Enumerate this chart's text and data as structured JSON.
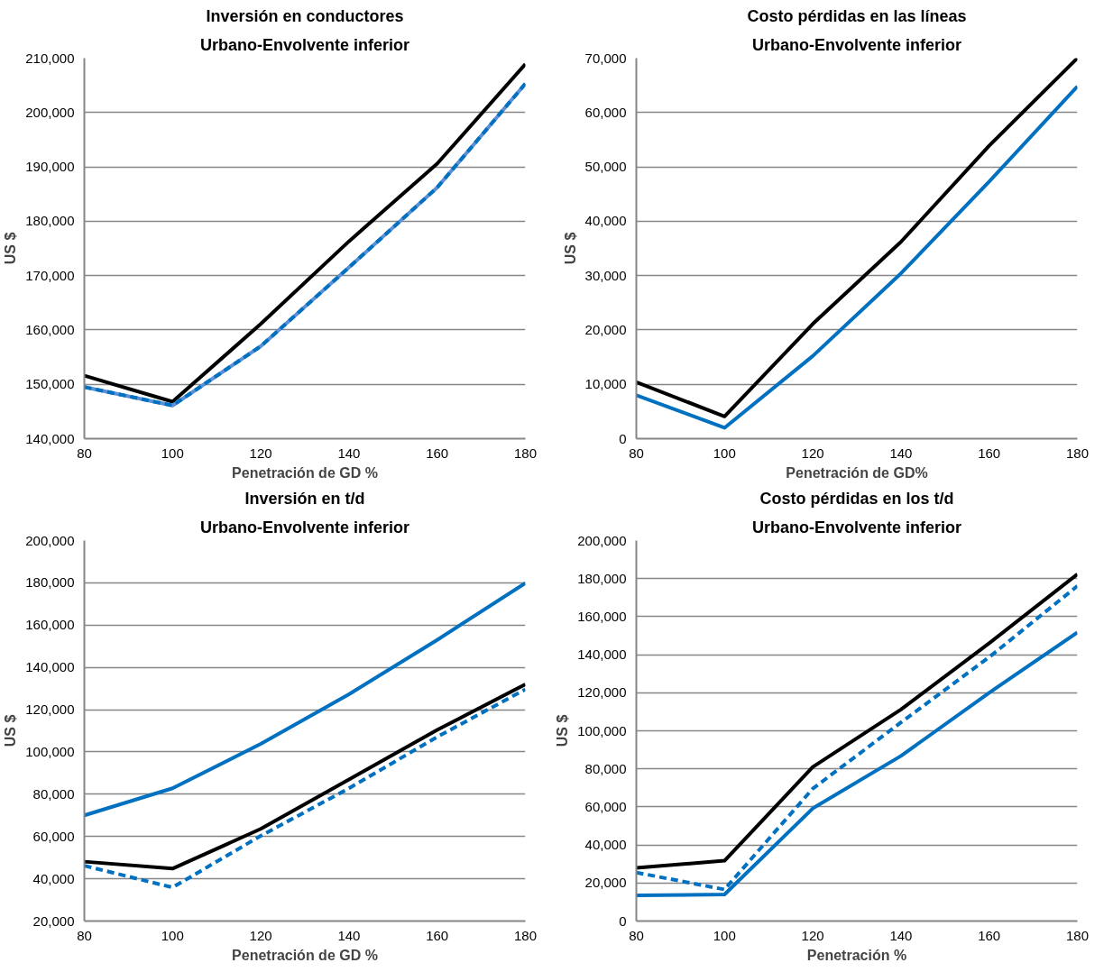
{
  "chart_data": [
    {
      "type": "line",
      "title": "Inversión en conductores",
      "subtitle": "Urbano-Envolvente inferior",
      "xlabel": "Penetración de GD %",
      "ylabel": "US $",
      "x": [
        80,
        100,
        120,
        140,
        160,
        180
      ],
      "xlim": [
        80,
        180
      ],
      "xticks": [
        80,
        100,
        120,
        140,
        160,
        180
      ],
      "ylim": [
        140000,
        210000
      ],
      "yticks": [
        {
          "value": 140000,
          "label": "140,000"
        },
        {
          "value": 150000,
          "label": "150,000"
        },
        {
          "value": 160000,
          "label": "160,000"
        },
        {
          "value": 170000,
          "label": "170,000"
        },
        {
          "value": 180000,
          "label": "180,000"
        },
        {
          "value": 190000,
          "label": "190,000"
        },
        {
          "value": 200000,
          "label": "200,000"
        },
        {
          "value": 210000,
          "label": "210,000"
        }
      ],
      "grid": "y",
      "marker": "none",
      "series": [
        {
          "color": "#000000",
          "line_style": "solid",
          "values": [
            151600,
            146800,
            161100,
            176300,
            190600,
            208900
          ]
        },
        {
          "color": "#5b8fd6",
          "line_style": "solid",
          "values": [
            149500,
            146100,
            157000,
            171500,
            186200,
            205300
          ]
        },
        {
          "color": "#0070c0",
          "line_style": "dashed",
          "values": [
            149500,
            146100,
            157000,
            171500,
            186200,
            205300
          ]
        }
      ]
    },
    {
      "type": "line",
      "title": "Costo pérdidas en las líneas",
      "subtitle": "Urbano-Envolvente inferior",
      "xlabel": "Penetración de GD%",
      "ylabel": "US $",
      "x": [
        80,
        100,
        120,
        140,
        160,
        180
      ],
      "xlim": [
        80,
        180
      ],
      "xticks": [
        80,
        100,
        120,
        140,
        160,
        180
      ],
      "ylim": [
        0,
        70000
      ],
      "yticks": [
        0,
        {
          "value": 10000,
          "label": "10,000"
        },
        {
          "value": 20000,
          "label": "20,000"
        },
        {
          "value": 30000,
          "label": "30,000"
        },
        {
          "value": 40000,
          "label": "40,000"
        },
        {
          "value": 50000,
          "label": "50,000"
        },
        {
          "value": 60000,
          "label": "60,000"
        },
        {
          "value": 70000,
          "label": "70,000"
        }
      ],
      "grid": "y",
      "marker": "none",
      "series": [
        {
          "color": "#000000",
          "line_style": "solid",
          "values": [
            10400,
            4100,
            21100,
            36200,
            53900,
            70000
          ]
        },
        {
          "color": "#0070c0",
          "line_style": "solid",
          "values": [
            8000,
            2000,
            15200,
            30400,
            47300,
            64800
          ]
        }
      ]
    },
    {
      "type": "line",
      "title": "Inversión en t/d",
      "subtitle": "Urbano-Envolvente inferior",
      "xlabel": "Penetración de GD %",
      "ylabel": "US $",
      "x": [
        80,
        100,
        120,
        140,
        160,
        180
      ],
      "xlim": [
        80,
        180
      ],
      "xticks": [
        80,
        100,
        120,
        140,
        160,
        180
      ],
      "ylim": [
        20000,
        200000
      ],
      "yticks": [
        {
          "value": 20000,
          "label": "20,000"
        },
        {
          "value": 40000,
          "label": "40,000"
        },
        {
          "value": 60000,
          "label": "60,000"
        },
        {
          "value": 80000,
          "label": "80,000"
        },
        {
          "value": 100000,
          "label": "100,000"
        },
        {
          "value": 120000,
          "label": "120,000"
        },
        {
          "value": 140000,
          "label": "140,000"
        },
        {
          "value": 160000,
          "label": "160,000"
        },
        {
          "value": 180000,
          "label": "180,000"
        },
        {
          "value": 200000,
          "label": "200,000"
        }
      ],
      "grid": "y",
      "marker": "none",
      "series": [
        {
          "color": "#0070c0",
          "line_style": "solid",
          "values": [
            70000,
            82800,
            103800,
            127300,
            153000,
            179900
          ]
        },
        {
          "color": "#000000",
          "line_style": "solid",
          "values": [
            48100,
            44800,
            63600,
            87000,
            110400,
            132000
          ]
        },
        {
          "color": "#0070c0",
          "line_style": "dashed",
          "values": [
            46200,
            35900,
            60300,
            82800,
            107100,
            129600
          ]
        }
      ]
    },
    {
      "type": "line",
      "title": "Costo pérdidas en los t/d",
      "subtitle": "Urbano-Envolvente inferior",
      "xlabel": "Penetración %",
      "ylabel": "US $",
      "x": [
        80,
        100,
        120,
        140,
        160,
        180
      ],
      "xlim": [
        80,
        180
      ],
      "xticks": [
        80,
        100,
        120,
        140,
        160,
        180
      ],
      "ylim": [
        0,
        200000
      ],
      "yticks": [
        0,
        {
          "value": 20000,
          "label": "20,000"
        },
        {
          "value": 40000,
          "label": "40,000"
        },
        {
          "value": 60000,
          "label": "60,000"
        },
        {
          "value": 80000,
          "label": "80,000"
        },
        {
          "value": 100000,
          "label": "100,000"
        },
        {
          "value": 120000,
          "label": "120,000"
        },
        {
          "value": 140000,
          "label": "140,000"
        },
        {
          "value": 160000,
          "label": "160,000"
        },
        {
          "value": 180000,
          "label": "180,000"
        },
        {
          "value": 200000,
          "label": "200,000"
        }
      ],
      "grid": "y",
      "marker": "none",
      "series": [
        {
          "color": "#000000",
          "line_style": "solid",
          "values": [
            28000,
            31700,
            81000,
            111200,
            146000,
            182300
          ]
        },
        {
          "color": "#0070c0",
          "line_style": "dashed",
          "values": [
            25500,
            16600,
            69600,
            104400,
            138700,
            176100
          ]
        },
        {
          "color": "#0070c0",
          "line_style": "solid",
          "values": [
            13500,
            14000,
            59200,
            86800,
            120000,
            151700
          ]
        }
      ]
    }
  ]
}
